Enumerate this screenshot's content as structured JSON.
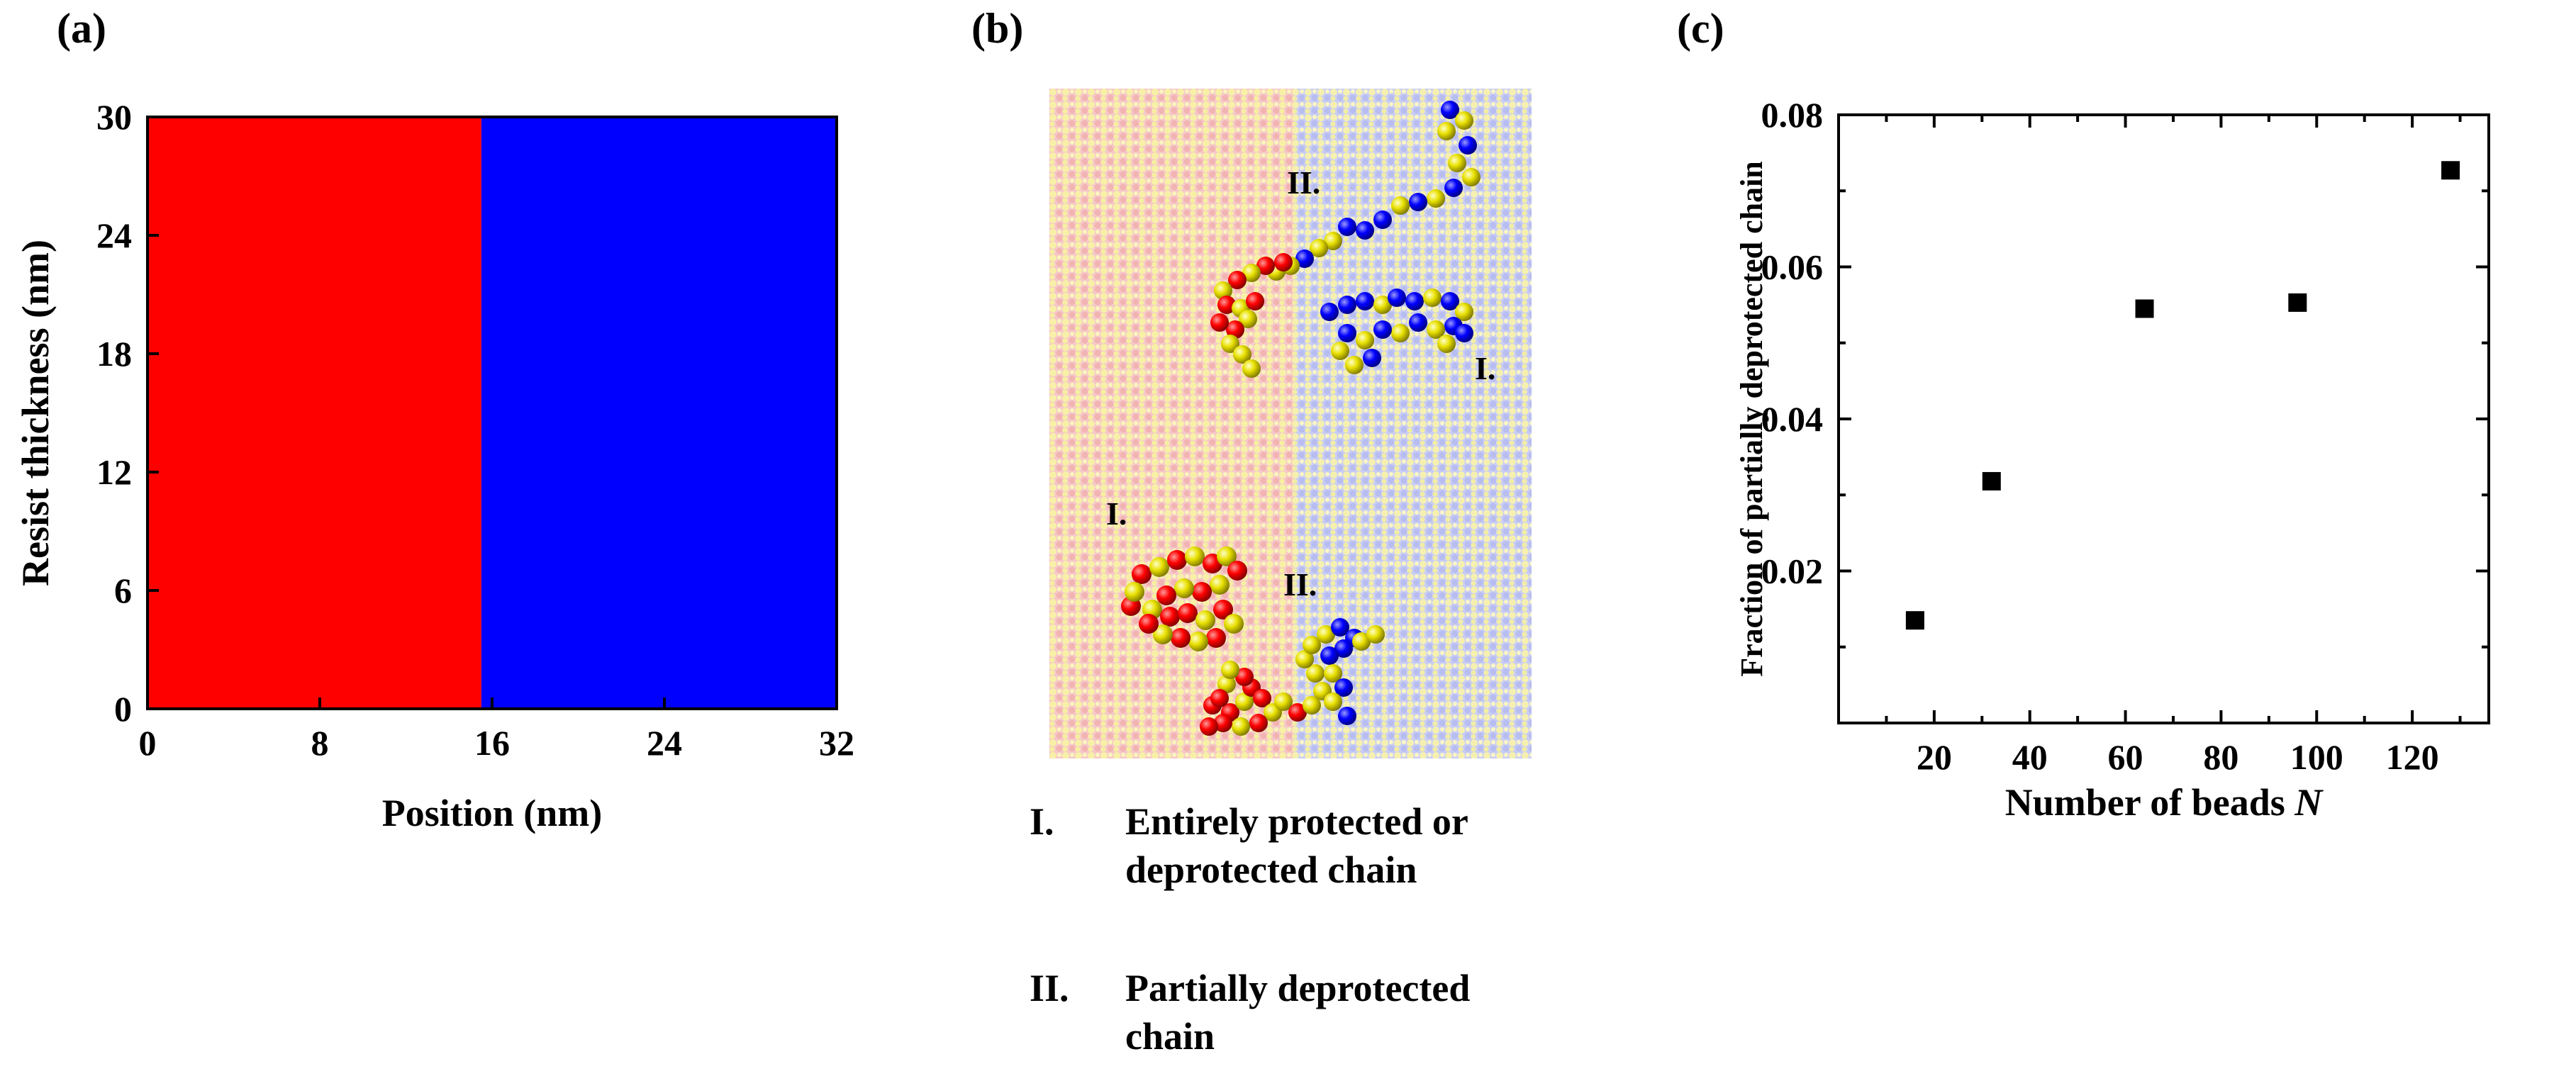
{
  "panels": {
    "a": {
      "label": "(a)"
    },
    "b": {
      "label": "(b)"
    },
    "c": {
      "label": "(c)"
    }
  },
  "chart_data": [
    {
      "type": "heatmap",
      "xlabel": "Position (nm)",
      "ylabel": "Resist thickness (nm)",
      "xlim": [
        0,
        32
      ],
      "ylim": [
        0,
        30
      ],
      "xticks": [
        0,
        8,
        16,
        24,
        32
      ],
      "yticks": [
        0,
        6,
        12,
        18,
        24,
        30
      ],
      "regions": [
        {
          "x": [
            0,
            15.5
          ],
          "y": [
            0,
            30
          ],
          "color": "#ff0000"
        },
        {
          "x": [
            15.5,
            32
          ],
          "y": [
            0,
            30
          ],
          "color": "#0000ff"
        }
      ]
    },
    {
      "type": "scatter",
      "xlabel_prefix": "Number of beads",
      "xlabel_symbol": "N",
      "ylabel": "Fraction of partially deprotected chain",
      "xlim": [
        0,
        136
      ],
      "ylim": [
        0,
        0.08
      ],
      "xticks": [
        20,
        40,
        60,
        80,
        100,
        120
      ],
      "yticks": [
        0.02,
        0.04,
        0.06,
        0.08
      ],
      "ytick_labels": [
        "0.02",
        "0.04",
        "0.06",
        "0.08"
      ],
      "marker": "square",
      "marker_color": "#000000",
      "points": [
        {
          "x": 16,
          "y": 0.0135
        },
        {
          "x": 32,
          "y": 0.0318
        },
        {
          "x": 64,
          "y": 0.0545
        },
        {
          "x": 96,
          "y": 0.0553
        },
        {
          "x": 128,
          "y": 0.0727
        }
      ]
    }
  ],
  "simulation": {
    "labels": [
      "II.",
      "I.",
      "I.",
      "II."
    ],
    "colors": {
      "protected": "#ff0000",
      "deprotected": "#0000ff",
      "acid": "#ffff00"
    }
  },
  "legend": [
    {
      "num": "I.",
      "text": "Entirely protected or deprotected chain"
    },
    {
      "num": "II.",
      "text": "Partially deprotected chain"
    }
  ]
}
